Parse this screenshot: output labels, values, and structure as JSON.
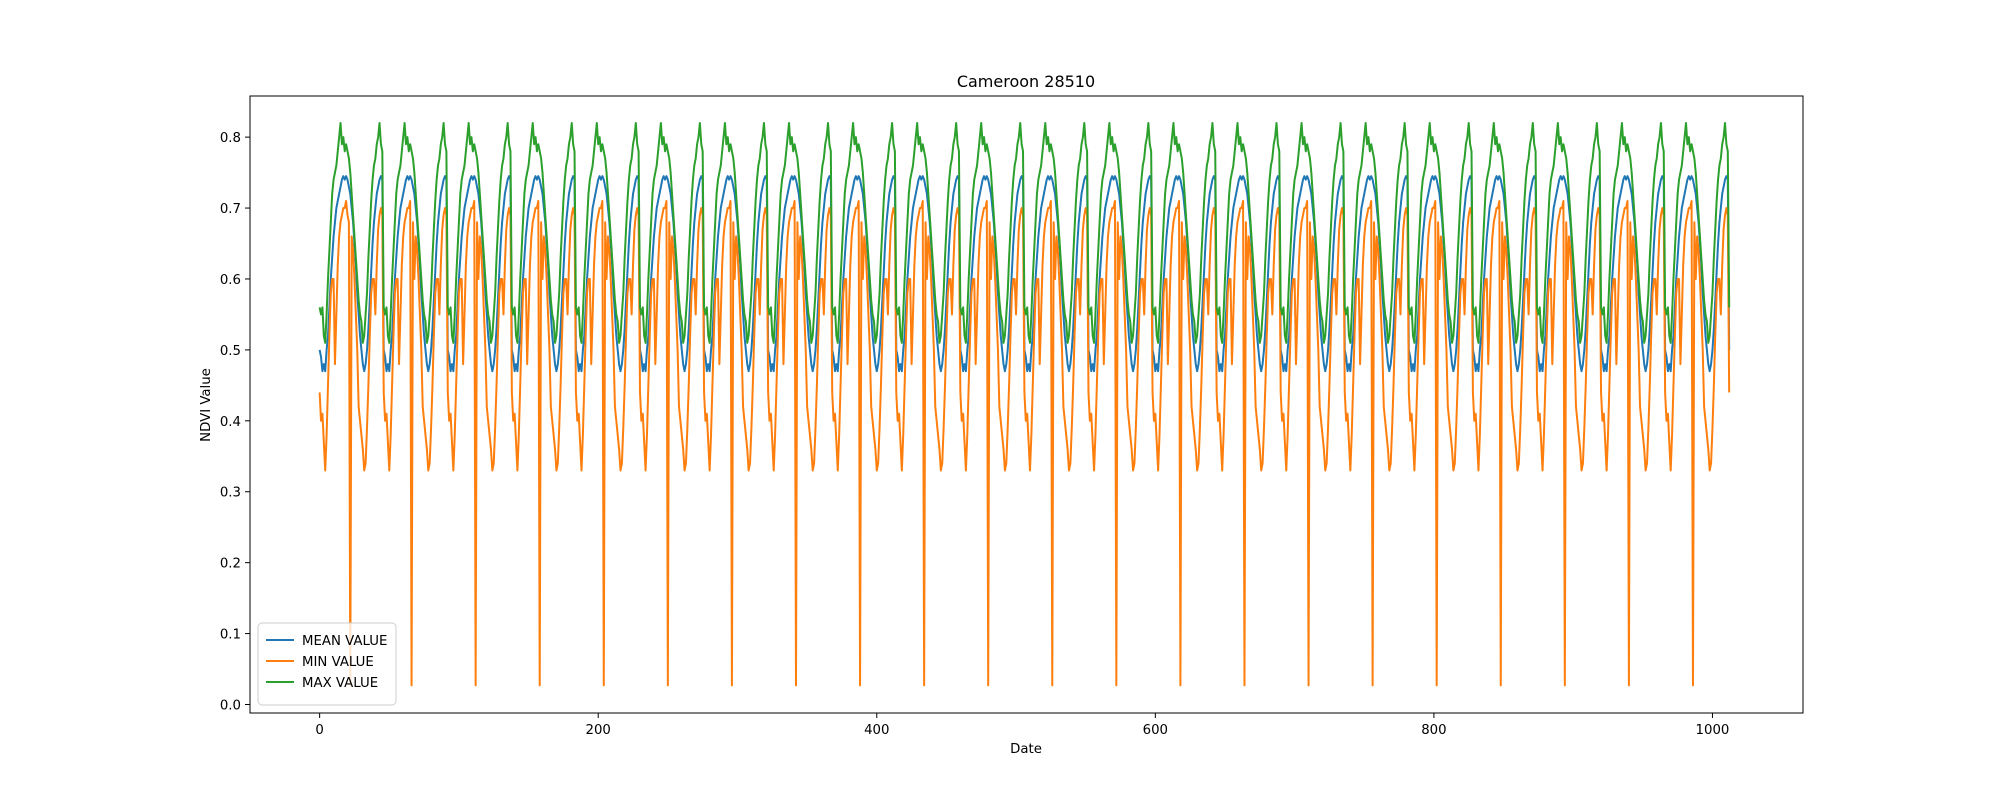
{
  "chart_data": {
    "type": "line",
    "title": "Cameroon 28510",
    "xlabel": "Date",
    "ylabel": "NDVI Value",
    "xlim": [
      -50,
      1065
    ],
    "ylim": [
      -0.012,
      0.858
    ],
    "xticks": [
      0,
      200,
      400,
      600,
      800,
      1000
    ],
    "yticks": [
      0.0,
      0.1,
      0.2,
      0.3,
      0.4,
      0.5,
      0.6,
      0.7,
      0.8
    ],
    "grid": false,
    "legend_position": "lower-left",
    "x_range": [
      0,
      1012
    ],
    "cycle_length": 46,
    "spike_indices": [
      22,
      66,
      112,
      158,
      204,
      250,
      296,
      342,
      388,
      434,
      480,
      526,
      572,
      618,
      664,
      710,
      756,
      802,
      848,
      894,
      940,
      986
    ],
    "series": [
      {
        "name": "MEAN VALUE",
        "color": "#1f77b4",
        "cycle_profile": [
          0.5,
          0.49,
          0.47,
          0.48,
          0.47,
          0.5,
          0.52,
          0.56,
          0.6,
          0.63,
          0.66,
          0.68,
          0.7,
          0.71,
          0.72,
          0.73,
          0.74,
          0.745,
          0.74,
          0.745,
          0.74,
          0.73,
          0.72,
          0.7,
          0.68,
          0.65,
          0.62,
          0.58,
          0.55,
          0.52,
          0.5,
          0.48,
          0.47,
          0.48,
          0.5,
          0.53,
          0.57,
          0.61,
          0.65,
          0.68,
          0.7,
          0.72,
          0.73,
          0.74,
          0.745,
          0.74
        ]
      },
      {
        "name": "MIN VALUE",
        "color": "#ff7f0e",
        "cycle_profile": [
          0.44,
          0.4,
          0.41,
          0.37,
          0.33,
          0.38,
          0.45,
          0.52,
          0.58,
          0.6,
          0.6,
          0.48,
          0.55,
          0.62,
          0.66,
          0.68,
          0.69,
          0.7,
          0.7,
          0.71,
          0.69,
          0.68,
          0.6,
          0.66,
          0.64,
          0.6,
          0.55,
          0.5,
          0.42,
          0.4,
          0.38,
          0.36,
          0.33,
          0.34,
          0.39,
          0.45,
          0.52,
          0.58,
          0.6,
          0.6,
          0.55,
          0.62,
          0.67,
          0.69,
          0.7,
          0.69
        ],
        "spike_value": 0.027
      },
      {
        "name": "MAX VALUE",
        "color": "#2ca02c",
        "cycle_profile": [
          0.56,
          0.55,
          0.56,
          0.52,
          0.51,
          0.55,
          0.6,
          0.64,
          0.68,
          0.72,
          0.74,
          0.75,
          0.76,
          0.78,
          0.8,
          0.82,
          0.79,
          0.8,
          0.78,
          0.79,
          0.78,
          0.77,
          0.75,
          0.72,
          0.69,
          0.66,
          0.63,
          0.6,
          0.57,
          0.55,
          0.54,
          0.51,
          0.52,
          0.55,
          0.58,
          0.63,
          0.67,
          0.71,
          0.74,
          0.76,
          0.77,
          0.79,
          0.8,
          0.82,
          0.79,
          0.78
        ]
      }
    ]
  }
}
